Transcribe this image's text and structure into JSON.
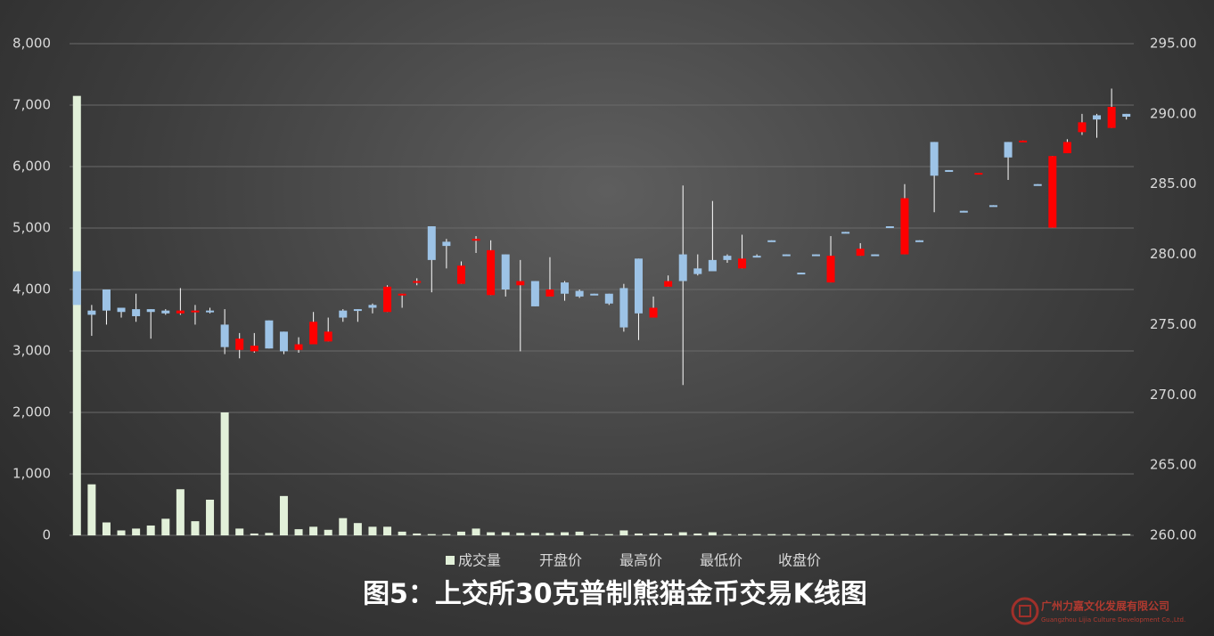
{
  "chart_data": {
    "type": "candlestick",
    "title": "图5：上交所30克普制熊猫金币交易K线图",
    "ylim": [
      0,
      8000
    ],
    "yticks": [
      0,
      {
        "value": 1000,
        "label": "1,000"
      },
      {
        "value": 2000,
        "label": "2,000"
      },
      {
        "value": 3000,
        "label": "3,000"
      },
      {
        "value": 4000,
        "label": "4,000"
      },
      {
        "value": 5000,
        "label": "5,000"
      },
      {
        "value": 6000,
        "label": "6,000"
      },
      {
        "value": 7000,
        "label": "7,000"
      },
      {
        "value": 8000,
        "label": "8,000"
      }
    ],
    "y2lim": [
      260,
      295
    ],
    "y2ticks": [
      {
        "value": 260,
        "label": "260.00"
      },
      {
        "value": 265,
        "label": "265.00"
      },
      {
        "value": 270,
        "label": "270.00"
      },
      {
        "value": 275,
        "label": "275.00"
      },
      {
        "value": 280,
        "label": "280.00"
      },
      {
        "value": 285,
        "label": "285.00"
      },
      {
        "value": 290,
        "label": "290.00"
      },
      {
        "value": 295,
        "label": "295.00"
      }
    ],
    "grid": true,
    "legend": "bottom",
    "up_color": "#9dc3e6",
    "down_color": "#ff0000",
    "series": [
      {
        "name": "成交量",
        "color": "#e2f0d9",
        "axis": "y",
        "values": [
          7150,
          830,
          210,
          80,
          110,
          160,
          270,
          750,
          230,
          580,
          2000,
          110,
          30,
          40,
          640,
          100,
          140,
          90,
          280,
          200,
          140,
          140,
          60,
          30,
          20,
          20,
          60,
          110,
          50,
          50,
          40,
          40,
          40,
          50,
          60,
          20,
          20,
          80,
          30,
          30,
          30,
          50,
          30,
          50,
          20,
          20,
          20,
          20,
          20,
          20,
          20,
          20,
          20,
          20,
          20,
          20,
          20,
          20,
          20,
          20,
          20,
          20,
          20,
          30,
          20,
          20,
          30,
          30,
          30,
          20,
          20,
          20
        ]
      },
      {
        "name": "开盘价",
        "axis": "y2",
        "values": [
          276.4,
          275.7,
          276.0,
          275.9,
          275.6,
          275.9,
          275.8,
          276.0,
          276.0,
          275.9,
          273.4,
          274.0,
          273.5,
          273.3,
          273.1,
          273.6,
          275.2,
          274.5,
          275.5,
          276.0,
          276.2,
          277.7,
          277.2,
          278.1,
          279.6,
          280.6,
          279.2,
          281.1,
          280.3,
          277.5,
          278.1,
          276.3,
          277.5,
          277.2,
          277.0,
          277.1,
          276.5,
          274.8,
          275.8,
          276.2,
          278.1,
          278.1,
          278.6,
          278.8,
          279.6,
          279.7,
          279.8,
          280.9,
          279.9,
          278.6,
          279.9,
          279.9,
          281.5,
          280.4,
          279.9,
          281.9,
          284.0,
          280.9,
          285.6,
          285.9,
          283.0,
          285.8,
          283.4,
          286.9,
          288.1,
          284.9,
          287.0,
          288.0,
          289.4,
          289.6,
          290.5,
          289.8
        ]
      },
      {
        "name": "最高价",
        "axis": "y2",
        "values": [
          278.8,
          276.4,
          277.5,
          276.2,
          277.2,
          276.1,
          276.1,
          277.6,
          276.4,
          276.2,
          276.1,
          274.4,
          274.4,
          275.3,
          274.5,
          274.1,
          275.9,
          275.5,
          276.1,
          276.1,
          276.5,
          277.8,
          277.2,
          278.3,
          282.0,
          281.1,
          279.5,
          281.3,
          281.0,
          280.0,
          279.6,
          278.1,
          279.8,
          278.1,
          277.5,
          277.2,
          277.2,
          277.9,
          279.7,
          277.0,
          278.5,
          284.9,
          280.0,
          283.8,
          280.0,
          281.4,
          280.0,
          281.0,
          280.0,
          278.7,
          280.0,
          281.3,
          281.6,
          280.8,
          280.0,
          282.0,
          285.0,
          281.0,
          288.0,
          286.0,
          283.1,
          285.8,
          283.5,
          288.0,
          288.1,
          285.0,
          287.0,
          288.2,
          290.0,
          290.0,
          291.8,
          290.0
        ]
      },
      {
        "name": "最低价",
        "axis": "y2",
        "values": [
          276.4,
          274.2,
          275.0,
          275.5,
          275.2,
          274.0,
          275.7,
          275.7,
          275.0,
          275.8,
          272.9,
          272.6,
          273.0,
          273.3,
          272.9,
          273.0,
          273.6,
          273.8,
          275.2,
          275.2,
          275.8,
          275.9,
          276.2,
          277.8,
          277.3,
          279.0,
          277.9,
          280.1,
          277.1,
          277.0,
          273.1,
          276.3,
          277.0,
          276.7,
          276.9,
          277.1,
          276.4,
          274.5,
          273.9,
          275.5,
          277.7,
          270.7,
          278.5,
          278.8,
          279.4,
          279.0,
          279.8,
          280.9,
          279.9,
          278.6,
          279.9,
          278.0,
          281.5,
          279.9,
          279.9,
          281.9,
          280.0,
          280.9,
          283.0,
          285.9,
          283.0,
          285.7,
          283.4,
          285.3,
          288.0,
          284.9,
          281.9,
          287.2,
          288.5,
          288.3,
          289.0,
          289.6
        ]
      },
      {
        "name": "收盘价",
        "axis": "y2",
        "values": [
          278.8,
          276.0,
          277.5,
          276.2,
          276.1,
          276.1,
          276.0,
          275.8,
          275.9,
          276.0,
          275.0,
          273.2,
          273.1,
          275.3,
          274.5,
          273.2,
          273.6,
          273.8,
          276.0,
          276.1,
          276.4,
          275.9,
          277.1,
          278.0,
          282.0,
          280.9,
          277.9,
          281.0,
          277.1,
          280.0,
          277.8,
          278.1,
          277.0,
          278.0,
          277.4,
          277.2,
          277.2,
          277.6,
          279.7,
          275.5,
          277.7,
          280.0,
          279.0,
          279.6,
          279.9,
          279.0,
          279.9,
          281.0,
          280.0,
          278.7,
          280.0,
          278.0,
          281.6,
          279.9,
          280.0,
          282.0,
          280.0,
          281.0,
          288.0,
          286.0,
          283.1,
          285.7,
          283.5,
          288.0,
          288.0,
          285.0,
          281.9,
          287.2,
          288.7,
          289.9,
          289.0,
          290.0
        ]
      }
    ]
  },
  "watermark": {
    "company": "广州力嘉文化发展有限公司",
    "english": "Guangzhou Lijia Culture Development Co.,Ltd."
  }
}
